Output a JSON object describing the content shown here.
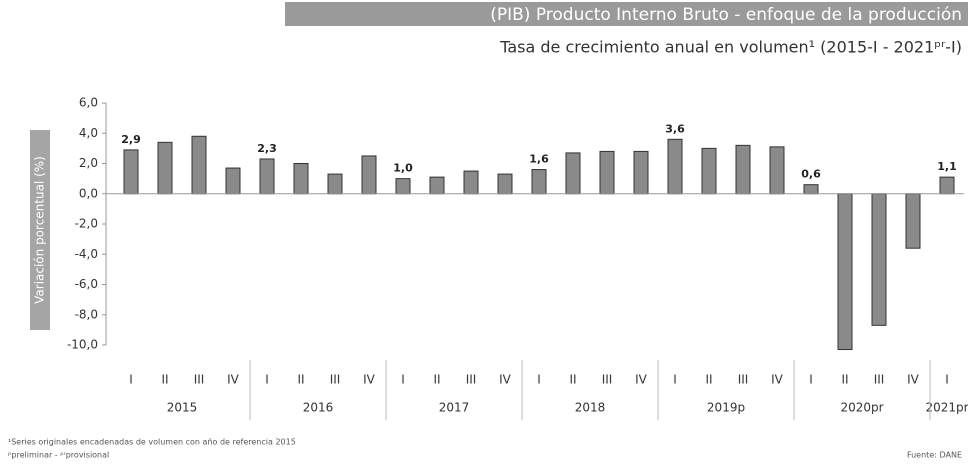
{
  "chart_data": {
    "type": "bar",
    "title": "(PIB) Producto Interno Bruto - enfoque de la producción",
    "subtitle": "Tasa de crecimiento anual en volumen¹ (2015-I - 2021ᵖʳ-I)",
    "y_label": "Variación porcentual (%)",
    "groups": [
      {
        "label": "2015",
        "categories": [
          "I",
          "II",
          "III",
          "IV"
        ]
      },
      {
        "label": "2016",
        "categories": [
          "I",
          "II",
          "III",
          "IV"
        ]
      },
      {
        "label": "2017",
        "categories": [
          "I",
          "II",
          "III",
          "IV"
        ]
      },
      {
        "label": "2018",
        "categories": [
          "I",
          "II",
          "III",
          "IV"
        ]
      },
      {
        "label": "2019p",
        "categories": [
          "I",
          "II",
          "III",
          "IV"
        ]
      },
      {
        "label": "2020pr",
        "categories": [
          "I",
          "II",
          "III",
          "IV"
        ]
      },
      {
        "label": "2021pr",
        "categories": [
          "I"
        ]
      }
    ],
    "values": [
      2.9,
      3.4,
      3.8,
      1.7,
      2.3,
      2.0,
      1.3,
      2.5,
      1.0,
      1.1,
      1.5,
      1.3,
      1.6,
      2.7,
      2.8,
      2.8,
      3.6,
      3.0,
      3.2,
      3.1,
      0.6,
      -10.3,
      -8.7,
      -3.6,
      1.1
    ],
    "value_labels": [
      "2,9",
      null,
      null,
      null,
      "2,3",
      null,
      null,
      null,
      "1,0",
      null,
      null,
      null,
      "1,6",
      null,
      null,
      null,
      "3,6",
      null,
      null,
      null,
      "0,6",
      null,
      null,
      null,
      "1,1"
    ],
    "color": "#8a8a8a",
    "ylim": [
      -10,
      6
    ],
    "yticks": [
      {
        "value": -10,
        "label": "-10,0"
      },
      {
        "value": -8,
        "label": "-8,0"
      },
      {
        "value": -6,
        "label": "-6,0"
      },
      {
        "value": -4,
        "label": "-4,0"
      },
      {
        "value": -2,
        "label": "-2,0"
      },
      {
        "value": 0,
        "label": "0,0"
      },
      {
        "value": 2,
        "label": "2,0"
      },
      {
        "value": 4,
        "label": "4,0"
      },
      {
        "value": 6,
        "label": "6,0"
      }
    ],
    "footnotes": [
      "¹Series originales encadenadas de volumen con año de referencia 2015",
      "ᵖpreliminar - ᵖʳprovisional"
    ],
    "source": "Fuente: DANE"
  }
}
